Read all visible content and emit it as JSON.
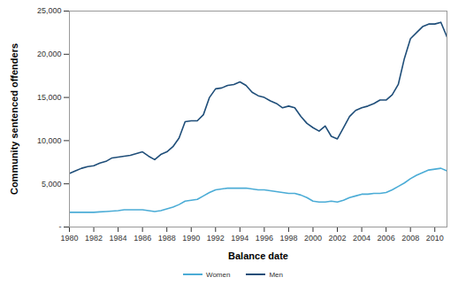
{
  "chart_data": {
    "type": "line",
    "x_label": "Balance date",
    "y_label": "Community sentenced offenders",
    "x": [
      1980,
      1980.5,
      1981,
      1981.5,
      1982,
      1982.5,
      1983,
      1983.5,
      1984,
      1984.5,
      1985,
      1985.5,
      1986,
      1986.5,
      1987,
      1987.5,
      1988,
      1988.5,
      1989,
      1989.5,
      1990,
      1990.5,
      1991,
      1991.5,
      1992,
      1992.5,
      1993,
      1993.5,
      1994,
      1994.5,
      1995,
      1995.5,
      1996,
      1996.5,
      1997,
      1997.5,
      1998,
      1998.5,
      1999,
      1999.5,
      2000,
      2000.5,
      2001,
      2001.5,
      2002,
      2002.5,
      2003,
      2003.5,
      2004,
      2004.5,
      2005,
      2005.5,
      2006,
      2006.5,
      2007,
      2007.5,
      2008,
      2008.5,
      2009,
      2009.5,
      2010,
      2010.5,
      2011
    ],
    "series": [
      {
        "name": "Women",
        "color": "#4bacd6",
        "values": [
          1700,
          1700,
          1700,
          1700,
          1700,
          1750,
          1800,
          1850,
          1900,
          2000,
          2000,
          2000,
          2000,
          1900,
          1800,
          1900,
          2100,
          2300,
          2600,
          3000,
          3100,
          3200,
          3600,
          4000,
          4300,
          4400,
          4500,
          4500,
          4500,
          4500,
          4400,
          4300,
          4300,
          4200,
          4100,
          4000,
          3900,
          3900,
          3700,
          3400,
          3000,
          2900,
          2900,
          3000,
          2900,
          3100,
          3400,
          3600,
          3800,
          3800,
          3900,
          3900,
          4000,
          4300,
          4700,
          5100,
          5600,
          6000,
          6300,
          6600,
          6700,
          6800,
          6500
        ]
      },
      {
        "name": "Men",
        "color": "#1f4e79",
        "values": [
          6200,
          6500,
          6800,
          7000,
          7100,
          7400,
          7600,
          8000,
          8100,
          8200,
          8300,
          8500,
          8700,
          8200,
          7800,
          8400,
          8700,
          9300,
          10300,
          12200,
          12300,
          12300,
          13000,
          15000,
          16000,
          16100,
          16400,
          16500,
          16800,
          16400,
          15600,
          15200,
          15000,
          14600,
          14300,
          13800,
          14000,
          13800,
          12800,
          12000,
          11500,
          11100,
          11700,
          10500,
          10200,
          11500,
          12800,
          13500,
          13800,
          14000,
          14300,
          14700,
          14700,
          15300,
          16500,
          19500,
          21800,
          22500,
          23200,
          23500,
          23500,
          23700,
          22000
        ]
      }
    ],
    "xlim": [
      1980,
      2011
    ],
    "xticks": [
      1980,
      1982,
      1984,
      1986,
      1988,
      1990,
      1992,
      1994,
      1996,
      1998,
      2000,
      2002,
      2004,
      2006,
      2008,
      2010
    ],
    "ylim": [
      0,
      25000
    ],
    "yticks": [
      {
        "value": 0,
        "label": "-"
      },
      {
        "value": 5000,
        "label": "5,000"
      },
      {
        "value": 10000,
        "label": "10,000"
      },
      {
        "value": 15000,
        "label": "15,000"
      },
      {
        "value": 20000,
        "label": "20,000"
      },
      {
        "value": 25000,
        "label": "25,000"
      }
    ],
    "grid": false,
    "legend": "bottom"
  }
}
